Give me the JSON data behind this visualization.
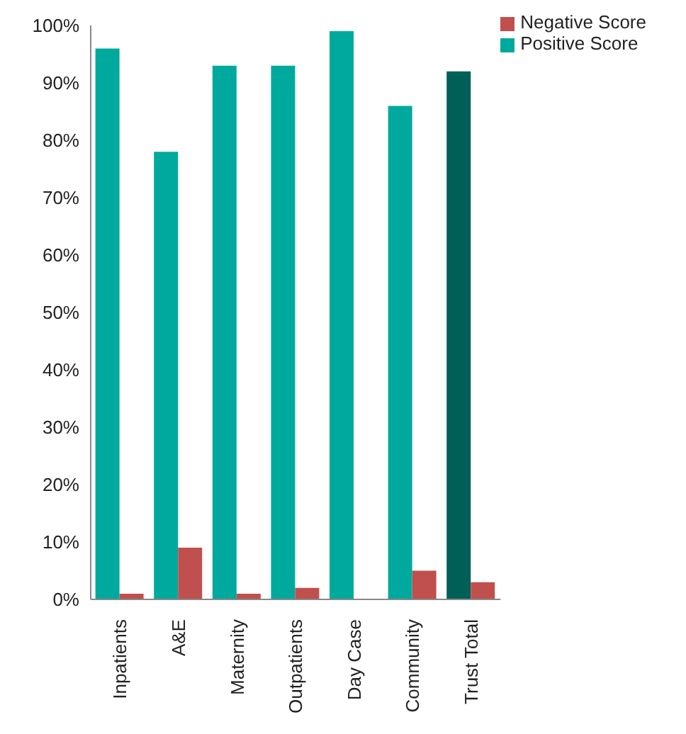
{
  "chart_data": {
    "type": "bar",
    "categories": [
      "Inpatients",
      "A&E",
      "Maternity",
      "Outpatients",
      "Day Case",
      "Community",
      "Trust Total"
    ],
    "series": [
      {
        "name": "Positive Score",
        "color": "#00a99d",
        "colors": [
          "#00a99d",
          "#00a99d",
          "#00a99d",
          "#00a99d",
          "#00a99d",
          "#00a99d",
          "#005f57"
        ],
        "values": [
          96,
          78,
          93,
          93,
          99,
          86,
          92
        ]
      },
      {
        "name": "Negative Score",
        "color": "#c0504d",
        "values": [
          1,
          9,
          1,
          2,
          0,
          5,
          3
        ]
      }
    ],
    "ylim": [
      0,
      100
    ],
    "yticks": [
      {
        "value": 0,
        "label": "0%"
      },
      {
        "value": 10,
        "label": "10%"
      },
      {
        "value": 20,
        "label": "20%"
      },
      {
        "value": 30,
        "label": "30%"
      },
      {
        "value": 40,
        "label": "40%"
      },
      {
        "value": 50,
        "label": "50%"
      },
      {
        "value": 60,
        "label": "60%"
      },
      {
        "value": 70,
        "label": "70%"
      },
      {
        "value": 80,
        "label": "80%"
      },
      {
        "value": 90,
        "label": "90%"
      },
      {
        "value": 100,
        "label": "100%"
      }
    ],
    "grid": false,
    "legend": "top right"
  }
}
